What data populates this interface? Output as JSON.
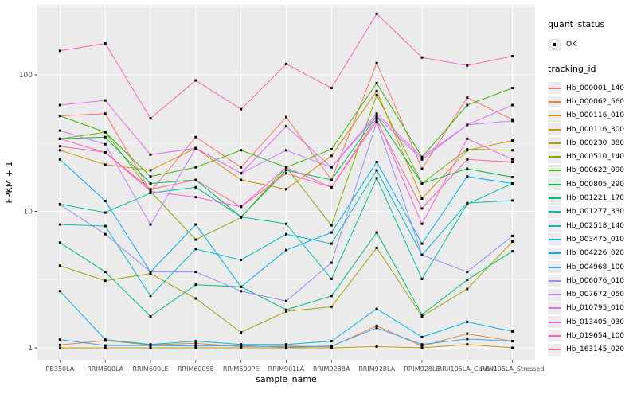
{
  "chart_data": {
    "type": "line",
    "title": "",
    "xlabel": "sample_name",
    "ylabel": "FPKM + 1",
    "y_scale": "log10",
    "ylim": [
      1,
      330
    ],
    "y_major_ticks": [
      1,
      10,
      100
    ],
    "y_minor_ticks": [
      3.1623,
      31.623,
      316.23
    ],
    "grid": "on",
    "legend_position": "right",
    "point_color": "#000000",
    "panel_bg": "#EBEBEB",
    "grid_color": "#FFFFFF",
    "tick_label_color": "#4D4D4D",
    "categories": [
      "PB350LA",
      "RRIM600LA",
      "RRIM600LE",
      "RRIM600SE",
      "RRIM600PE",
      "RRIM901LA",
      "RRIM928BA",
      "RRIM928LA",
      "RRIM928LE",
      "RRII105LA_Control",
      "RRII105LA_Stressed"
    ],
    "series": [
      {
        "name": "Hb_000001_140",
        "color": "#F8766D",
        "values": [
          50,
          52,
          14,
          35,
          21,
          49,
          17,
          122,
          20.5,
          68,
          47
        ]
      },
      {
        "name": "Hb_000062_560",
        "color": "#EA8331",
        "values": [
          1.05,
          1.13,
          1.05,
          1.08,
          1.02,
          1.03,
          1.02,
          1.45,
          1.03,
          1.27,
          1.12
        ]
      },
      {
        "name": "Hb_000116_010",
        "color": "#D89000",
        "values": [
          28,
          22,
          20,
          29,
          17,
          14.5,
          25.5,
          76,
          12.4,
          28,
          33
        ]
      },
      {
        "name": "Hb_000116_300",
        "color": "#C49A00",
        "values": [
          1.0,
          1.0,
          1.0,
          1.0,
          1.0,
          1.0,
          1.0,
          1.02,
          1.0,
          1.06,
          1.0
        ]
      },
      {
        "name": "Hb_000230_380",
        "color": "#A3A500",
        "values": [
          4.0,
          3.1,
          3.5,
          2.3,
          1.3,
          1.85,
          2.0,
          5.4,
          1.7,
          2.7,
          6.0
        ]
      },
      {
        "name": "Hb_000510_140",
        "color": "#7CAE00",
        "values": [
          34,
          38,
          14,
          6.2,
          9.0,
          21,
          7.9,
          71,
          16,
          28.5,
          28
        ]
      },
      {
        "name": "Hb_000622_090",
        "color": "#39B600",
        "values": [
          50,
          38,
          18,
          21,
          28,
          21,
          28.5,
          87,
          25,
          60,
          80
        ]
      },
      {
        "name": "Hb_000805_290",
        "color": "#00BB4E",
        "values": [
          34,
          35,
          16,
          17,
          9.1,
          20,
          17,
          50,
          16,
          20.5,
          17.8
        ]
      },
      {
        "name": "Hb_001221_170",
        "color": "#00BF7D",
        "values": [
          5.9,
          3.6,
          1.7,
          2.9,
          2.8,
          1.9,
          2.4,
          7.0,
          1.75,
          3.15,
          5.1
        ]
      },
      {
        "name": "Hb_001277_330",
        "color": "#00C1A3",
        "values": [
          11.3,
          9.8,
          13.6,
          15,
          9.1,
          8.1,
          3.2,
          17.5,
          3.2,
          11.3,
          16
        ]
      },
      {
        "name": "Hb_002518_140",
        "color": "#00BFC4",
        "values": [
          8.0,
          7.8,
          2.4,
          5.3,
          4.4,
          6.8,
          5.8,
          20,
          4.8,
          11.5,
          12
        ]
      },
      {
        "name": "Hb_003475_010",
        "color": "#00BAE0",
        "values": [
          2.6,
          1.15,
          1.06,
          1.12,
          1.06,
          1.06,
          1.12,
          1.93,
          1.2,
          1.55,
          1.32
        ]
      },
      {
        "name": "Hb_004226_020",
        "color": "#00B0F6",
        "values": [
          24,
          11.9,
          3.6,
          8.0,
          2.8,
          5.2,
          7.0,
          23,
          5.8,
          18,
          16
        ]
      },
      {
        "name": "Hb_004968_100",
        "color": "#35A2FF",
        "values": [
          1.15,
          1.04,
          1.04,
          1.03,
          1.04,
          1.01,
          1.03,
          1.4,
          1.06,
          1.16,
          1.12
        ]
      },
      {
        "name": "Hb_006076_010",
        "color": "#9590FF",
        "values": [
          11.2,
          6.8,
          3.6,
          3.6,
          2.6,
          2.2,
          4.2,
          45,
          4.8,
          3.6,
          6.6
        ]
      },
      {
        "name": "Hb_007672_050",
        "color": "#C77CFF",
        "values": [
          39,
          31,
          8.0,
          29,
          19,
          28,
          21,
          50,
          24,
          43,
          46
        ]
      },
      {
        "name": "Hb_010795_010",
        "color": "#E76BF3",
        "values": [
          60,
          65,
          26,
          29,
          19,
          42,
          21,
          52,
          25,
          43,
          60
        ]
      },
      {
        "name": "Hb_013405_030",
        "color": "#FA62DB",
        "values": [
          34,
          27,
          14,
          12.7,
          10.8,
          21,
          15,
          48,
          8.1,
          34,
          24
        ]
      },
      {
        "name": "Hb_019654_100",
        "color": "#FF62BC",
        "values": [
          150,
          170,
          48,
          91,
          56,
          120,
          80,
          280,
          134,
          117,
          137
        ]
      },
      {
        "name": "Hb_163145_020",
        "color": "#FF6A98",
        "values": [
          30,
          27,
          14.5,
          17,
          10.8,
          19,
          15,
          46,
          10.5,
          24,
          23
        ]
      }
    ]
  },
  "legend": {
    "quant_status_title": "quant_status",
    "quant_status_items": [
      "OK"
    ],
    "tracking_id_title": "tracking_id"
  }
}
